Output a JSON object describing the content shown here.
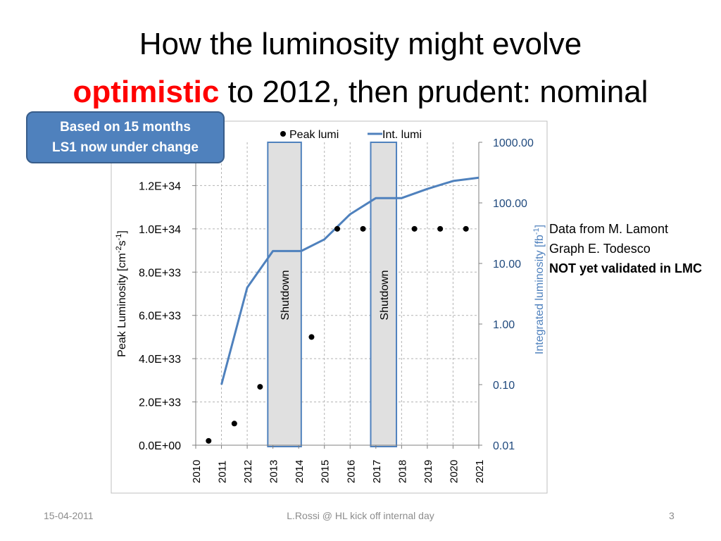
{
  "slide": {
    "title_line1": "How the luminosity might evolve",
    "title_accent": "optimistic",
    "title_line2_rest": " to 2012, then prudent: nominal",
    "callout_line1": "Based on 15 months",
    "callout_line2": "LS1 now  under change",
    "notes": [
      "Data from M. Lamont",
      "Graph E. Todesco",
      "NOT yet validated in LMC"
    ],
    "footer": {
      "date": "15-04-2011",
      "center": "L.Rossi @ HL kick off internal day",
      "page": "3"
    }
  },
  "chart_data": {
    "type": "scatter+line",
    "x_ticks": [
      "2010",
      "2011",
      "2012",
      "2013",
      "2014",
      "2015",
      "2016",
      "2017",
      "2018",
      "2019",
      "2020",
      "2021"
    ],
    "xlim": [
      2010,
      2021
    ],
    "y_left": {
      "label": "Peak Luminosity [cm",
      "label_sup1": "-2",
      "label_mid": "s",
      "label_sup2": "-1",
      "label_end": "]",
      "ticks": [
        "0.0E+00",
        "2.0E+33",
        "4.0E+33",
        "6.0E+33",
        "8.0E+33",
        "1.0E+34",
        "1.2E+34"
      ],
      "ylim": [
        0,
        1.4e+34
      ]
    },
    "y_right": {
      "label": "Integrated luminosity [fb",
      "label_sup": "-1",
      "label_end": "]",
      "scale": "log",
      "ticks": [
        "0.01",
        "0.10",
        "1.00",
        "10.00",
        "100.00",
        "1000.00"
      ],
      "ylim": [
        0.01,
        1000
      ]
    },
    "legend": {
      "peak": "Peak lumi",
      "int": "Int. lumi",
      "position": "top"
    },
    "shutdowns": [
      {
        "label": "Shutdown",
        "from": 2012.8,
        "to": 2014.1
      },
      {
        "label": "Shutdown",
        "from": 2016.8,
        "to": 2017.8
      }
    ],
    "peak_lumi": {
      "name": "Peak lumi",
      "x": [
        2010.5,
        2011.5,
        2012.5,
        2014.5,
        2015.5,
        2016.5,
        2018.5,
        2019.5,
        2020.5
      ],
      "y": [
        2e+32,
        1e+33,
        2.7e+33,
        5e+33,
        1e+34,
        1e+34,
        1e+34,
        1e+34,
        1e+34
      ]
    },
    "int_lumi": {
      "name": "Int. lumi",
      "x": [
        2011,
        2012,
        2013,
        2014.1,
        2015,
        2016,
        2017,
        2018,
        2019,
        2020,
        2021
      ],
      "y": [
        0.1,
        4,
        16,
        16,
        25,
        65,
        120,
        120,
        170,
        230,
        260
      ]
    },
    "colors": {
      "int_line": "#4f81bd",
      "axis_text_right": "#1f497d",
      "shutdown_fill": "#e0e0e0",
      "shutdown_border": "#4f81bd",
      "grid": "#b3b3b3"
    }
  }
}
